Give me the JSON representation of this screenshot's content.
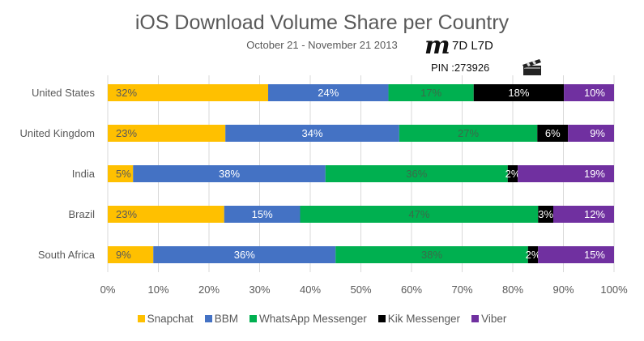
{
  "chart_data": {
    "type": "bar",
    "orientation": "horizontal",
    "stacked": true,
    "title": "iOS Download Volume Share per Country",
    "subtitle": "October 21 - November 21 2013",
    "xlabel": "",
    "ylabel": "",
    "xlim": [
      0,
      100
    ],
    "x_ticks": [
      "0%",
      "10%",
      "20%",
      "30%",
      "40%",
      "50%",
      "60%",
      "70%",
      "80%",
      "90%",
      "100%"
    ],
    "grid": true,
    "legend_position": "bottom",
    "categories": [
      "United States",
      "United Kingdom",
      "India",
      "Brazil",
      "South Africa"
    ],
    "series": [
      {
        "name": "Snapchat",
        "color": "#FFC000",
        "label_color": "#595959",
        "values": [
          32,
          23,
          5,
          23,
          9
        ],
        "labels": [
          "32%",
          "23%",
          "5%",
          "23%",
          "9%"
        ]
      },
      {
        "name": "BBM",
        "color": "#4472C4",
        "label_color": "#ffffff",
        "values": [
          24,
          34,
          38,
          15,
          36
        ],
        "labels": [
          "24%",
          "34%",
          "38%",
          "15%",
          "36%"
        ]
      },
      {
        "name": "WhatsApp Messenger",
        "color": "#00B050",
        "label_color": "#3a6b4a",
        "values": [
          17,
          27,
          36,
          47,
          38
        ],
        "labels": [
          "17%",
          "27%",
          "36%",
          "47%",
          "38%"
        ]
      },
      {
        "name": "Kik Messenger",
        "color": "#000000",
        "label_color": "#ffffff",
        "values": [
          18,
          6,
          2,
          3,
          2
        ],
        "labels": [
          "18%",
          "6%",
          "2%",
          "3%",
          "2%"
        ]
      },
      {
        "name": "Viber",
        "color": "#7030A0",
        "label_color": "#ffffff",
        "values": [
          10,
          9,
          19,
          12,
          15
        ],
        "labels": [
          "10%",
          "9%",
          "19%",
          "12%",
          "15%"
        ]
      }
    ]
  },
  "watermark": {
    "signature": "m",
    "code": "7D L7D",
    "pin": "PIN :273926",
    "icon": "clapperboard-icon"
  }
}
